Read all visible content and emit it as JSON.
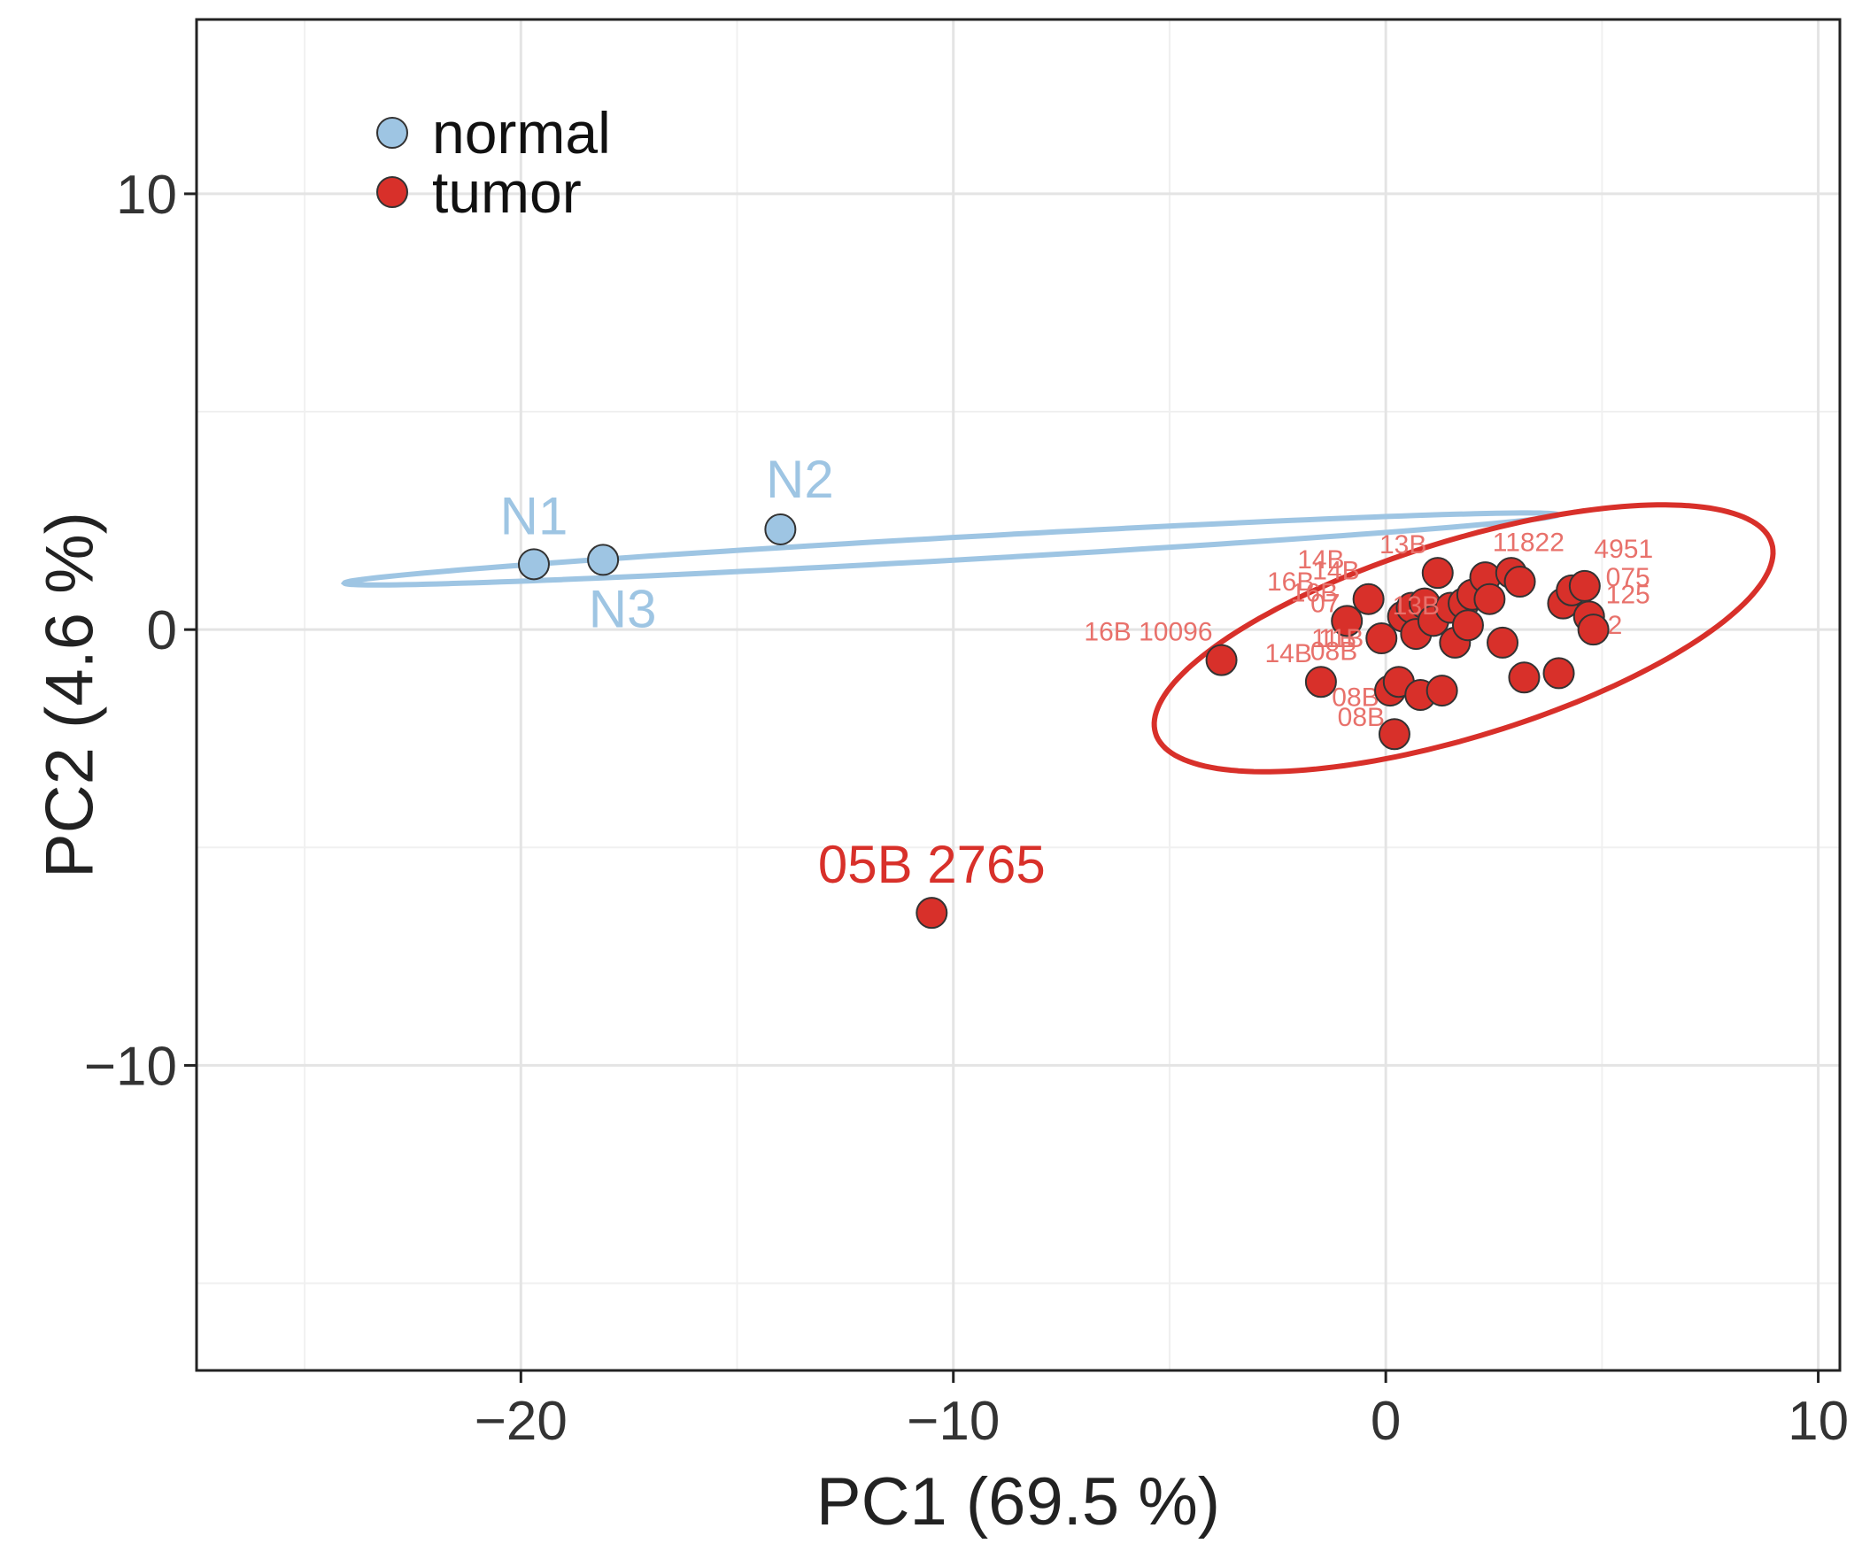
{
  "chart_data": {
    "type": "scatter",
    "xlabel": "PC1 (69.5 %)",
    "ylabel": "PC2 (4.6 %)",
    "xlim": [
      -27.5,
      10.5
    ],
    "ylim": [
      -17,
      14
    ],
    "x_ticks": [
      -20,
      -10,
      0,
      10
    ],
    "x_tick_labels": [
      "−20",
      "−10",
      "0",
      "10"
    ],
    "y_ticks": [
      -10,
      0,
      10
    ],
    "y_tick_labels": [
      "−10",
      "0",
      "10"
    ],
    "minor_x": [
      -25,
      -15,
      -5,
      5
    ],
    "minor_y": [
      -15,
      -5,
      5
    ],
    "grid": true,
    "legend": {
      "position": "top-left",
      "items": [
        {
          "label": "normal",
          "color": "#9ec5e3"
        },
        {
          "label": "tumor",
          "color": "#d8302a"
        }
      ]
    },
    "series": [
      {
        "name": "normal",
        "color": "#9ec5e3",
        "points": [
          {
            "x": -19.7,
            "y": 1.5,
            "label": "N1",
            "label_size": "large",
            "label_pos": "above"
          },
          {
            "x": -14.0,
            "y": 2.3,
            "label": "N2",
            "label_size": "large",
            "label_pos": "above-right"
          },
          {
            "x": -18.1,
            "y": 1.6,
            "label": "N3",
            "label_size": "large",
            "label_pos": "below"
          }
        ],
        "ellipse": {
          "cx": -10.05,
          "cy": 1.85,
          "rx": 14.05,
          "ry": 0.26,
          "angle_deg": 3.2
        }
      },
      {
        "name": "tumor",
        "color": "#d8302a",
        "points": [
          {
            "x": -10.5,
            "y": -6.5,
            "label": "05B 2765",
            "label_size": "large",
            "label_pos": "above"
          },
          {
            "x": -3.8,
            "y": -0.7,
            "label": "16B 10096",
            "label_size": "small",
            "label_pos": "above-left"
          },
          {
            "x": -1.5,
            "y": -1.2,
            "label": "14B",
            "label_size": "small",
            "label_pos": "above-left"
          },
          {
            "x": -0.9,
            "y": 0.2,
            "label": "16B",
            "label_size": "small",
            "label_pos": "above-left"
          },
          {
            "x": -0.4,
            "y": 0.7,
            "label": "14B",
            "label_size": "small",
            "label_pos": "above-left"
          },
          {
            "x": -0.1,
            "y": -0.2,
            "label": "11B",
            "label_size": "small",
            "label_pos": "left"
          },
          {
            "x": 0.1,
            "y": -1.4,
            "label": "08B",
            "label_size": "small",
            "label_pos": "below-left"
          },
          {
            "x": 0.2,
            "y": -2.4
          },
          {
            "x": 0.3,
            "y": -1.2
          },
          {
            "x": 0.4,
            "y": 0.3
          },
          {
            "x": 0.6,
            "y": 0.5
          },
          {
            "x": 0.7,
            "y": -0.1,
            "label": "13B",
            "label_size": "small",
            "label_pos": "above"
          },
          {
            "x": 0.9,
            "y": 0.6
          },
          {
            "x": 0.8,
            "y": -1.5
          },
          {
            "x": 1.1,
            "y": 0.2
          },
          {
            "x": 1.2,
            "y": 1.3
          },
          {
            "x": 1.3,
            "y": -1.4
          },
          {
            "x": 1.5,
            "y": 0.5
          },
          {
            "x": 1.6,
            "y": -0.3
          },
          {
            "x": 1.8,
            "y": 0.6
          },
          {
            "x": 1.9,
            "y": 0.1
          },
          {
            "x": 2.0,
            "y": 0.8
          },
          {
            "x": 2.3,
            "y": 1.2
          },
          {
            "x": 2.4,
            "y": 0.7
          },
          {
            "x": 2.7,
            "y": -0.3
          },
          {
            "x": 2.9,
            "y": 1.3
          },
          {
            "x": 3.1,
            "y": 1.1
          },
          {
            "x": 3.2,
            "y": -1.1
          },
          {
            "x": 4.0,
            "y": -1.0
          },
          {
            "x": 4.1,
            "y": 0.6
          },
          {
            "x": 4.3,
            "y": 0.9
          },
          {
            "x": 4.6,
            "y": 1.0
          },
          {
            "x": 4.7,
            "y": 0.3
          },
          {
            "x": 4.8,
            "y": 0.0
          }
        ],
        "ellipse": {
          "cx": 1.8,
          "cy": -0.2,
          "rx": 7.45,
          "ry": 2.25,
          "angle_deg": 17
        }
      }
    ],
    "cluster_text_labels": [
      {
        "text": "13B",
        "x": 0.4,
        "y": 1.75
      },
      {
        "text": "11822",
        "x": 3.3,
        "y": 1.8
      },
      {
        "text": "4951",
        "x": 5.5,
        "y": 1.65
      },
      {
        "text": "14B",
        "x": -1.5,
        "y": 1.4
      },
      {
        "text": "16B",
        "x": -2.2,
        "y": 0.9
      },
      {
        "text": "075",
        "x": 5.6,
        "y": 1.0
      },
      {
        "text": "125",
        "x": 5.6,
        "y": 0.6
      },
      {
        "text": "07",
        "x": -1.4,
        "y": 0.4
      },
      {
        "text": "2",
        "x": 5.3,
        "y": -0.1
      },
      {
        "text": "11B",
        "x": -1.2,
        "y": -0.4
      },
      {
        "text": "08B",
        "x": -1.2,
        "y": -0.7
      },
      {
        "text": "08B",
        "x": -0.7,
        "y": -1.75
      }
    ]
  }
}
